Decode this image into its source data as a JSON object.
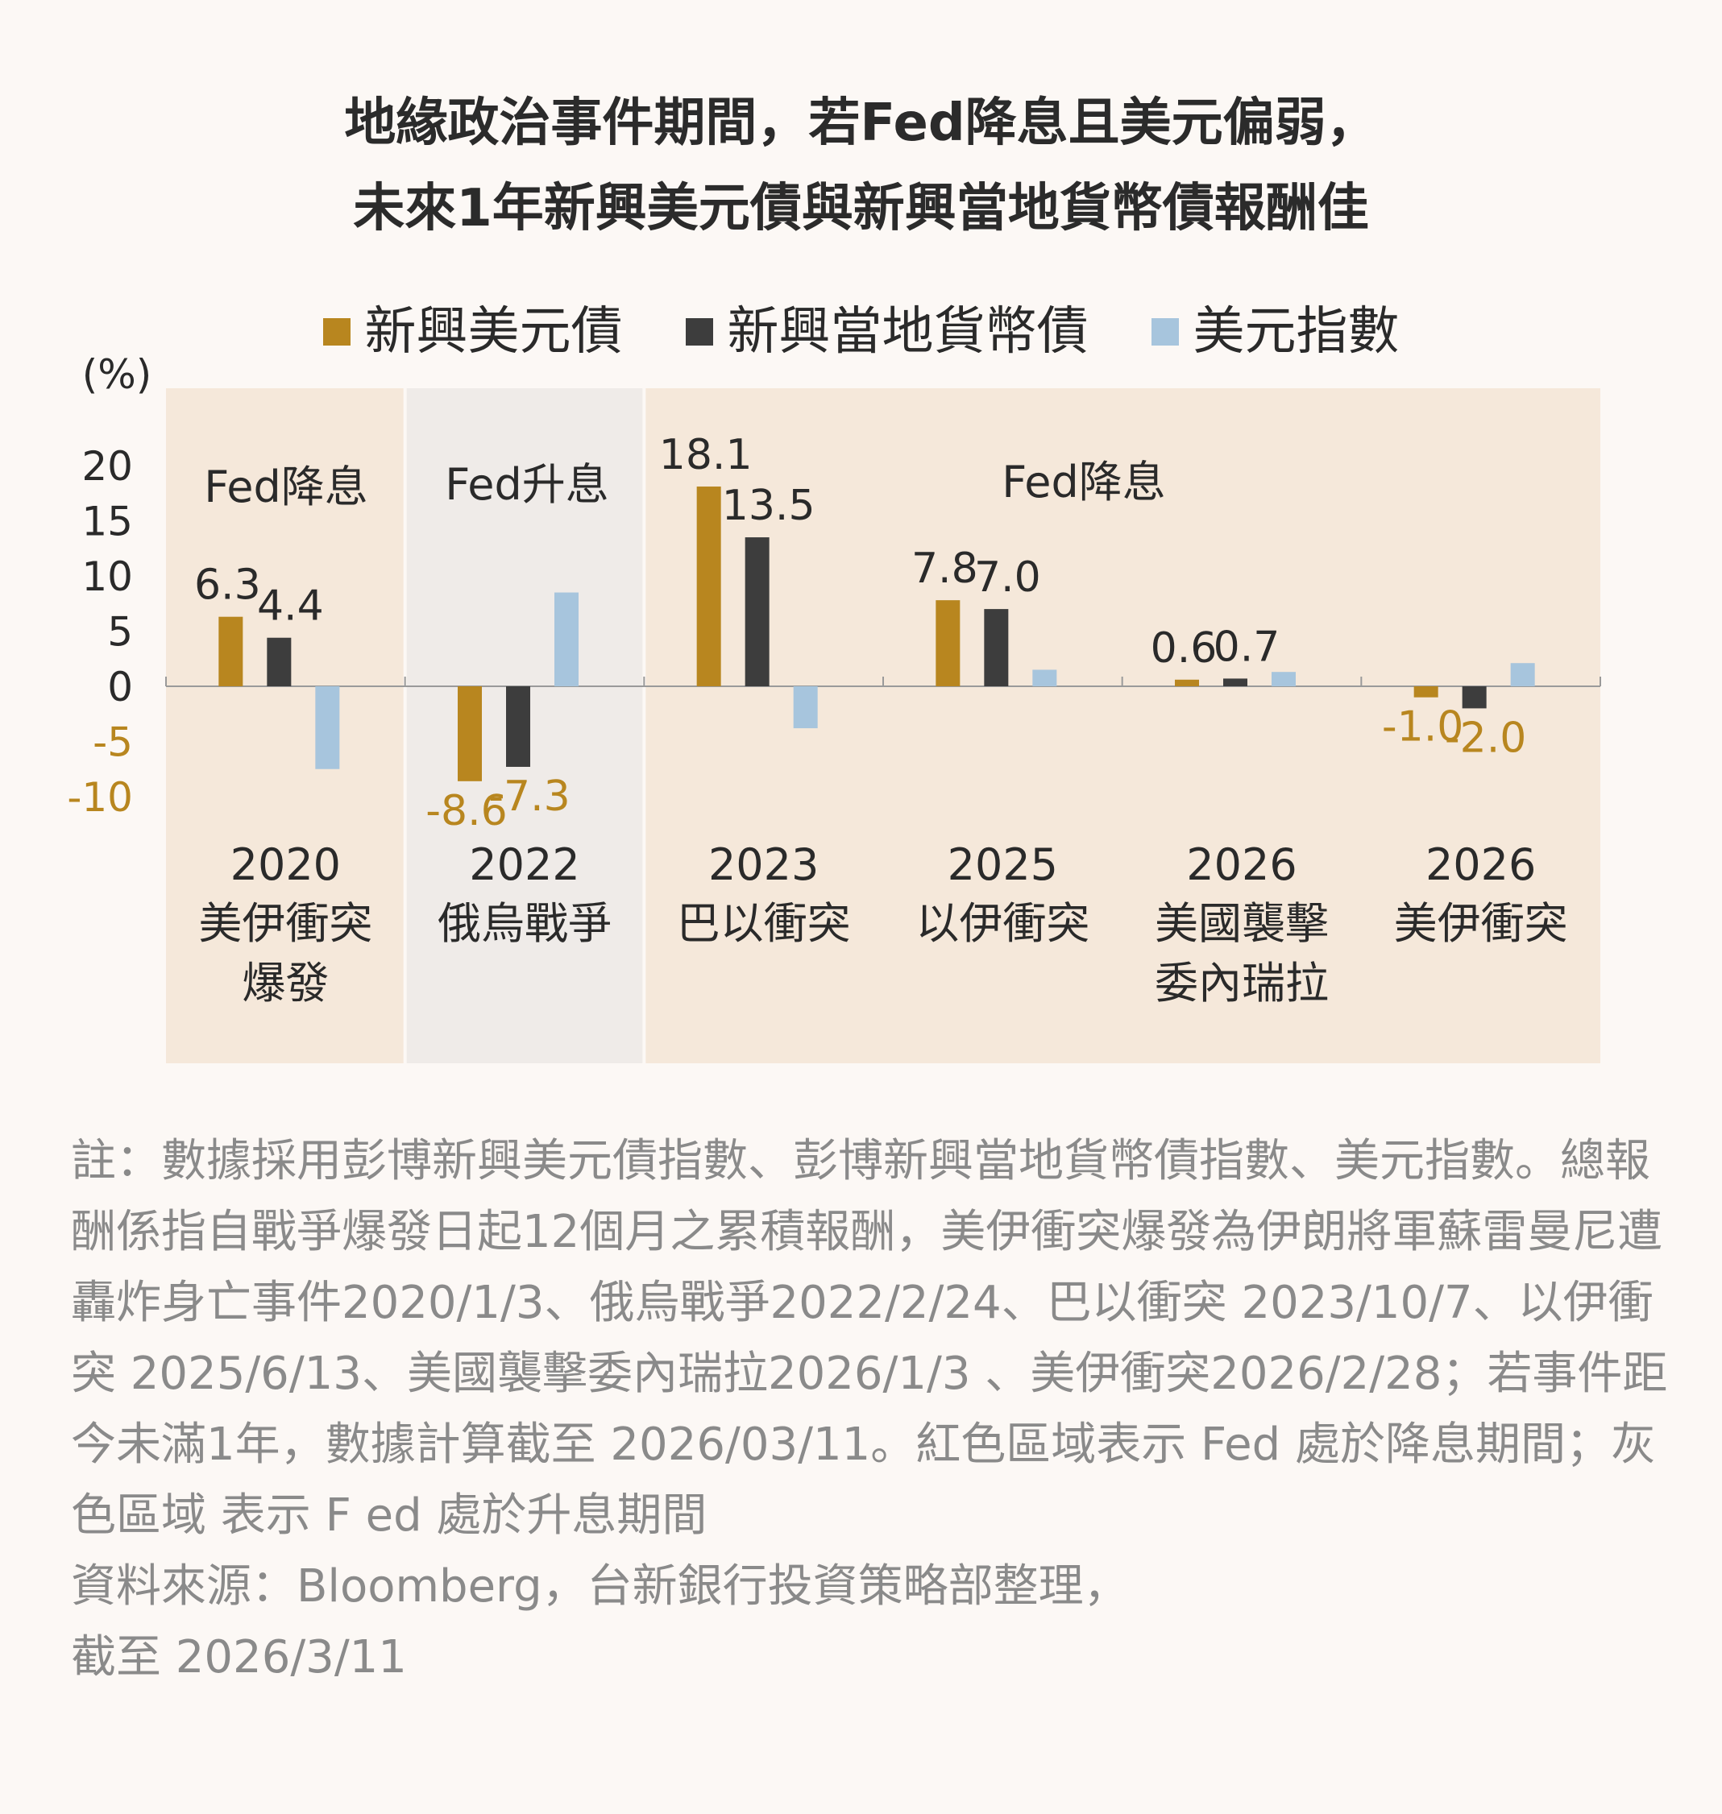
{
  "title": {
    "line1": "地緣政治事件期間，若Fed降息且美元偏弱，",
    "line2": "未來1年新興美元債與新興當地貨幣債報酬佳"
  },
  "colors": {
    "series1": "#b8861f",
    "series2": "#3d3d3d",
    "series3": "#a7c5dd",
    "cut_region": "#f5e8da",
    "hike_region": "#efebe8",
    "neg_label": "#b8861f"
  },
  "chart_data": {
    "type": "bar",
    "unit_label": "(%)",
    "yticks": [
      "20",
      "15",
      "10",
      "5",
      "0",
      "-5",
      "-10"
    ],
    "ylim": [
      -10,
      25
    ],
    "categories": [
      {
        "year": "2020",
        "lines": [
          "美伊衝突",
          "爆發"
        ]
      },
      {
        "year": "2022",
        "lines": [
          "俄烏戰爭"
        ]
      },
      {
        "year": "2023",
        "lines": [
          "巴以衝突"
        ]
      },
      {
        "year": "2025",
        "lines": [
          "以伊衝突"
        ]
      },
      {
        "year": "2026",
        "lines": [
          "美國襲擊",
          "委內瑞拉"
        ]
      },
      {
        "year": "2026",
        "lines": [
          "美伊衝突"
        ]
      }
    ],
    "series": [
      {
        "name": "新興美元債",
        "values": [
          6.3,
          -8.6,
          18.1,
          7.8,
          0.6,
          -1.0
        ],
        "labels": [
          "6.3",
          "-8.6",
          "18.1",
          "7.8",
          "0.6",
          "-1.0"
        ]
      },
      {
        "name": "新興當地貨幣債",
        "values": [
          4.4,
          -7.3,
          13.5,
          7.0,
          0.7,
          -2.0
        ],
        "labels": [
          "4.4",
          "-7.3",
          "13.5",
          "7.0",
          "0.7",
          "-2.0"
        ]
      },
      {
        "name": "美元指數",
        "values": [
          -7.5,
          8.5,
          -3.8,
          1.5,
          1.3,
          2.1
        ],
        "labels": [
          "",
          "",
          "",
          "",
          "",
          ""
        ]
      }
    ],
    "regions": [
      {
        "label": "Fed降息",
        "type": "cut",
        "from": 0,
        "to": 0
      },
      {
        "label": "Fed升息",
        "type": "hike",
        "from": 1,
        "to": 1
      },
      {
        "label": "Fed降息",
        "type": "cut",
        "from": 2,
        "to": 5
      }
    ]
  },
  "notes": [
    "註：數據採用彭博新興美元債指數、彭博新興當地貨幣債指數、美元指數。總報酬係指自戰爭爆發日起12個月之累積報酬，美伊衝突爆發為伊朗將軍蘇雷曼尼遭轟炸身亡事件2020/1/3、俄烏戰爭2022/2/24、巴以衝突 2023/10/7、以伊衝突 2025/6/13、美國襲擊委內瑞拉2026/1/3 、美伊衝突2026/2/28；若事件距今未滿1年，數據計算截至 2026/03/11。紅色區域表示 Fed 處於降息期間；灰色區域 表示 F ed 處於升息期間",
    "資料來源：Bloomberg，台新銀行投資策略部整理，",
    "截至 2026/3/11"
  ]
}
